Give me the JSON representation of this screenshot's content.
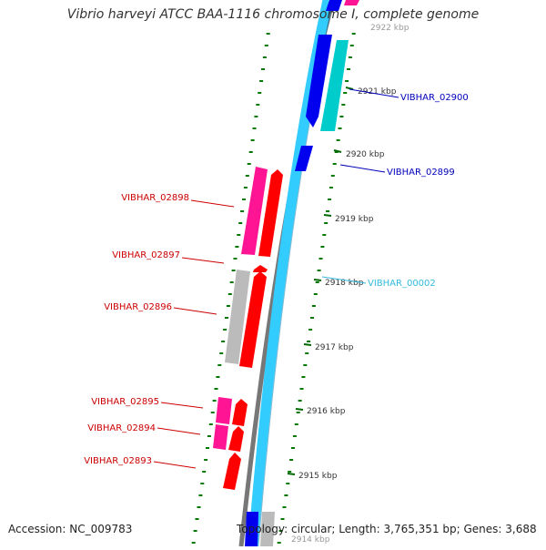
{
  "header": {
    "title": "Vibrio harveyi ATCC BAA-1116 chromosome I, complete genome"
  },
  "footer": {
    "accession": "Accession: NC_009783",
    "summary": "Topology: circular; Length: 3,765,351 bp; Genes: 3,688"
  },
  "colors": {
    "cds": "#ff0000",
    "gene_pink": "#ff1493",
    "pseudo_gray": "#bbbbbb",
    "forward_blue": "#0000ee",
    "forward_cyan": "#00cccc",
    "track_light_blue": "#33ccff",
    "backbone": "#777777",
    "tick_green": "#006600",
    "label_red": "#cc0000",
    "label_blue": "#0000bb",
    "label_cyan": "#33bbdd"
  },
  "scale": {
    "unit": "kbp",
    "ticks": [
      {
        "label": "2922 kbp"
      },
      {
        "label": "2921 kbp"
      },
      {
        "label": "2920 kbp"
      },
      {
        "label": "2919 kbp"
      },
      {
        "label": "2918 kbp"
      },
      {
        "label": "2917 kbp"
      },
      {
        "label": "2916 kbp"
      },
      {
        "label": "2915 kbp"
      },
      {
        "label": "2914 kbp"
      }
    ]
  },
  "genes": [
    {
      "name": "VIBHAR_02900",
      "strand": "+",
      "color": "blue"
    },
    {
      "name": "VIBHAR_02899",
      "strand": "+",
      "color": "blue"
    },
    {
      "name": "VIBHAR_00002",
      "strand": "+",
      "color": "cyan"
    },
    {
      "name": "VIBHAR_02898",
      "strand": "-",
      "color": "red"
    },
    {
      "name": "VIBHAR_02897",
      "strand": "-",
      "color": "red"
    },
    {
      "name": "VIBHAR_02896",
      "strand": "-",
      "color": "red"
    },
    {
      "name": "VIBHAR_02895",
      "strand": "-",
      "color": "red"
    },
    {
      "name": "VIBHAR_02894",
      "strand": "-",
      "color": "red"
    },
    {
      "name": "VIBHAR_02893",
      "strand": "-",
      "color": "red"
    }
  ]
}
